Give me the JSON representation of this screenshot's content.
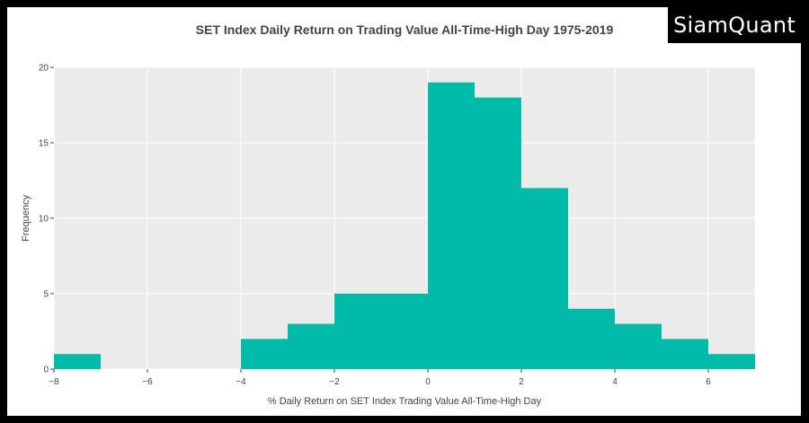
{
  "brand": {
    "logo_text": "SiamQuant"
  },
  "colors": {
    "bar": "#00bba7",
    "plot_bg": "#ebebeb",
    "grid": "#ffffff",
    "text": "#444444"
  },
  "chart_data": {
    "type": "bar",
    "subtype": "histogram",
    "title": "SET Index Daily Return on Trading Value All-Time-High Day 1975-2019",
    "xlabel": "% Daily Return on SET Index Trading Value All-Time-High Day",
    "ylabel": "Frequency",
    "xlim": [
      -8,
      7
    ],
    "ylim": [
      0,
      20
    ],
    "xticks": [
      -8,
      -6,
      -4,
      -2,
      0,
      2,
      4,
      6
    ],
    "yticks": [
      0,
      5,
      10,
      15,
      20
    ],
    "xtick_labels": [
      "−8",
      "−6",
      "−4",
      "−2",
      "0",
      "2",
      "4",
      "6"
    ],
    "ytick_labels": [
      "0",
      "5",
      "10",
      "15",
      "20"
    ],
    "grid": true,
    "bins": [
      {
        "x0": -8,
        "x1": -7,
        "count": 1
      },
      {
        "x0": -7,
        "x1": -6,
        "count": 0
      },
      {
        "x0": -6,
        "x1": -5,
        "count": 0
      },
      {
        "x0": -5,
        "x1": -4,
        "count": 0
      },
      {
        "x0": -4,
        "x1": -3,
        "count": 2
      },
      {
        "x0": -3,
        "x1": -2,
        "count": 3
      },
      {
        "x0": -2,
        "x1": -1,
        "count": 5
      },
      {
        "x0": -1,
        "x1": 0,
        "count": 5
      },
      {
        "x0": 0,
        "x1": 1,
        "count": 19
      },
      {
        "x0": 1,
        "x1": 2,
        "count": 18
      },
      {
        "x0": 2,
        "x1": 3,
        "count": 12
      },
      {
        "x0": 3,
        "x1": 4,
        "count": 4
      },
      {
        "x0": 4,
        "x1": 5,
        "count": 3
      },
      {
        "x0": 5,
        "x1": 6,
        "count": 2
      },
      {
        "x0": 6,
        "x1": 7,
        "count": 1
      }
    ]
  }
}
